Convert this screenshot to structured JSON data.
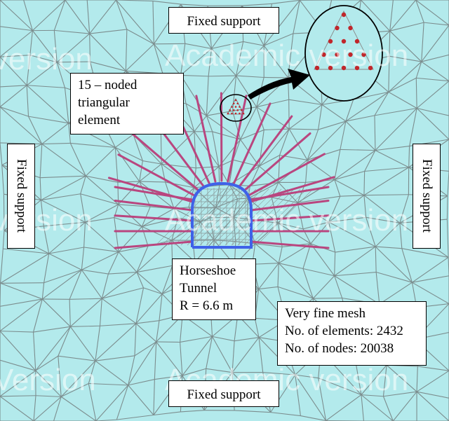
{
  "labels": {
    "top_support": "Fixed support",
    "bottom_support": "Fixed support",
    "left_support": "Fixed support",
    "right_support": "Fixed support",
    "element": [
      "15 – noded",
      "triangular",
      "element"
    ],
    "tunnel": [
      "Horseshoe",
      "Tunnel",
      "R = 6.6 m"
    ],
    "mesh_info": [
      "Very fine mesh",
      "No. of elements: 2432",
      "No. of nodes: 20038"
    ]
  },
  "watermark": "Academic version",
  "watermark_fragments": [
    "version",
    "Academic version",
    "version",
    "Academic version",
    "Version",
    "Academic version"
  ],
  "colors": {
    "background": "#b3eaec",
    "mesh_line": "#7c8d8e",
    "rockbolt": "#b9467f",
    "tunnel_lining": "#3f62e8",
    "node_dot": "#c0262b",
    "arrow": "#000000"
  }
}
